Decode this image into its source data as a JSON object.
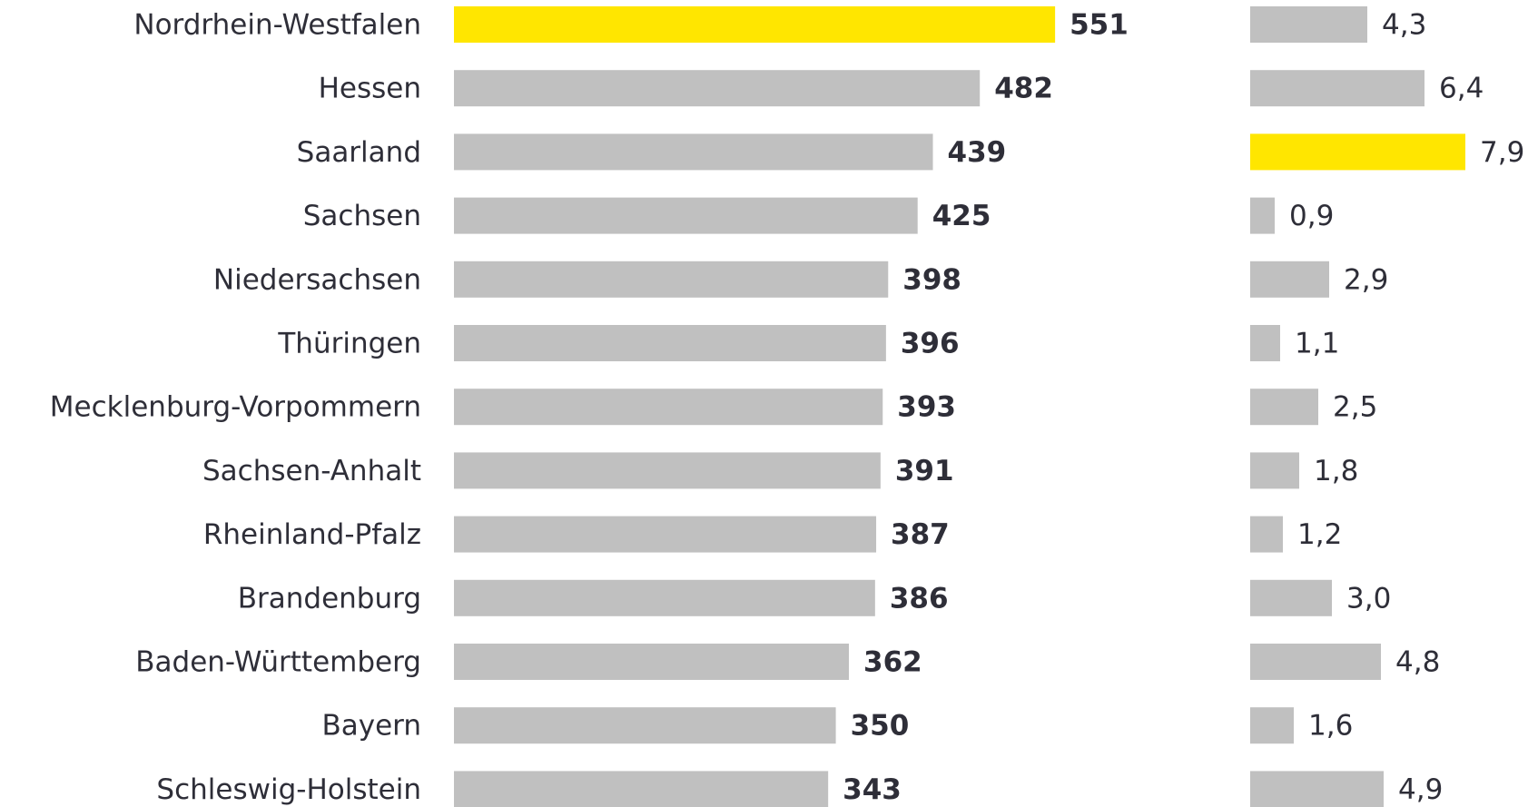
{
  "chart_data": [
    {
      "type": "bar",
      "orientation": "horizontal",
      "categories": [
        "Nordrhein-Westfalen",
        "Hessen",
        "Saarland",
        "Sachsen",
        "Niedersachsen",
        "Thüringen",
        "Mecklenburg-Vorpommern",
        "Sachsen-Anhalt",
        "Rheinland-Pfalz",
        "Brandenburg",
        "Baden-Württemberg",
        "Bayern",
        "Schleswig-Holstein"
      ],
      "values": [
        551,
        482,
        439,
        425,
        398,
        396,
        393,
        391,
        387,
        386,
        362,
        350,
        343
      ],
      "colors": [
        "#ffe600",
        "#c0c0c0",
        "#c0c0c0",
        "#c0c0c0",
        "#c0c0c0",
        "#c0c0c0",
        "#c0c0c0",
        "#c0c0c0",
        "#c0c0c0",
        "#c0c0c0",
        "#c0c0c0",
        "#c0c0c0",
        "#c0c0c0"
      ],
      "xlim": [
        0,
        600
      ]
    },
    {
      "type": "bar",
      "orientation": "horizontal",
      "values": [
        4.3,
        6.4,
        7.9,
        0.9,
        2.9,
        1.1,
        2.5,
        1.8,
        1.2,
        3.0,
        4.8,
        1.6,
        4.9
      ],
      "value_labels": [
        "4,3",
        "6,4",
        "7,9",
        "0,9",
        "2,9",
        "1,1",
        "2,5",
        "1,8",
        "1,2",
        "3,0",
        "4,8",
        "1,6",
        "4,9"
      ],
      "colors": [
        "#c0c0c0",
        "#c0c0c0",
        "#ffe600",
        "#c0c0c0",
        "#c0c0c0",
        "#c0c0c0",
        "#c0c0c0",
        "#c0c0c0",
        "#c0c0c0",
        "#c0c0c0",
        "#c0c0c0",
        "#c0c0c0",
        "#c0c0c0"
      ],
      "xlim": [
        0,
        8
      ]
    }
  ]
}
